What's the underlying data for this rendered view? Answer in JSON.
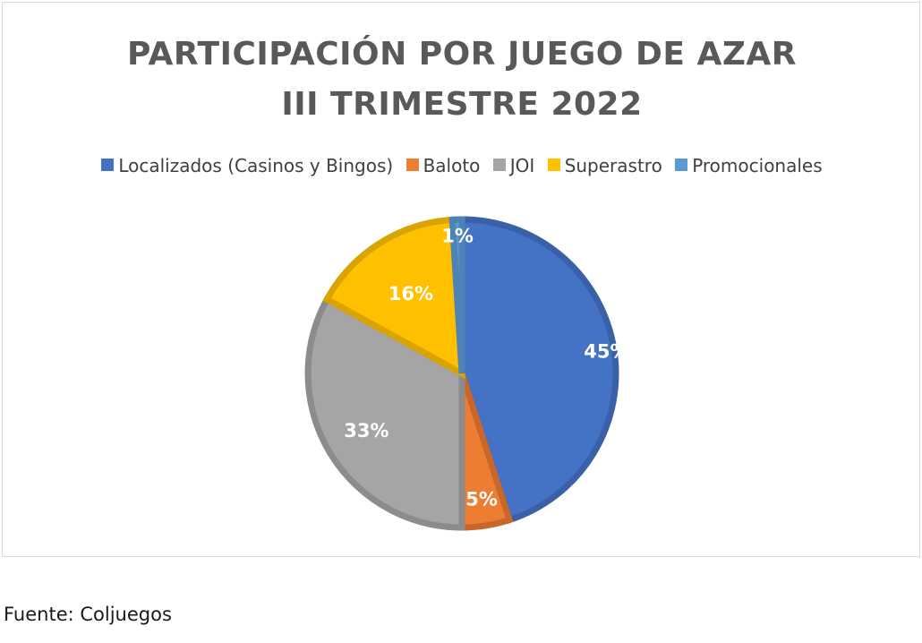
{
  "chart_data": {
    "type": "pie",
    "title_lines": [
      "PARTICIPACIÓN POR JUEGO DE AZAR",
      "III TRIMESTRE 2022"
    ],
    "slices": [
      {
        "name": "Localizados (Casinos y Bingos)",
        "value": 45,
        "label": "45%",
        "color": "#4472c4",
        "edge": "#3a61a8"
      },
      {
        "name": "Baloto",
        "value": 5,
        "label": "5%",
        "color": "#ed7d31",
        "edge": "#c9662a"
      },
      {
        "name": "JOI",
        "value": 33,
        "label": "33%",
        "color": "#a5a5a5",
        "edge": "#8c8c8c"
      },
      {
        "name": "Superastro",
        "value": 16,
        "label": "16%",
        "color": "#ffc000",
        "edge": "#d9a300"
      },
      {
        "name": "Promocionales",
        "value": 1,
        "label": "1%",
        "color": "#5b9bd5",
        "edge": "#4d84b5"
      }
    ],
    "legend_position": "top",
    "label_color": "#ffffff"
  },
  "source": "Fuente: Coljuegos"
}
